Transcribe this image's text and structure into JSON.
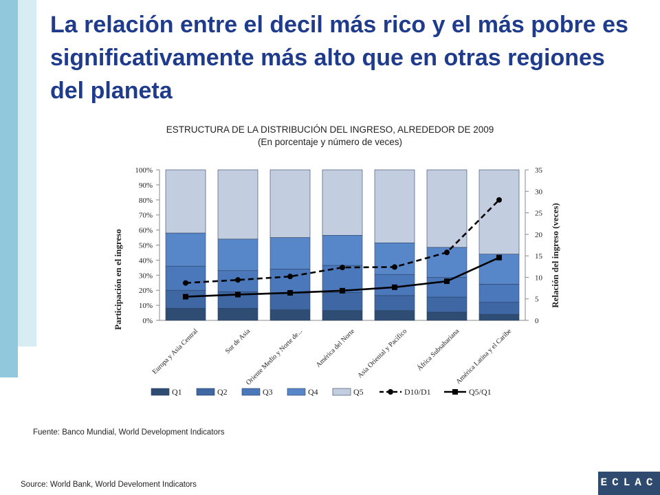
{
  "page": {
    "title": "La relación entre el decil más rico y el más pobre es significativamente más alto que en otras regiones del planeta",
    "source_es": "Fuente: Banco Mundial, World Development Indicators",
    "source_en": "Source: World Bank, World Develoment Indicators",
    "logo_text": "ECLAC"
  },
  "colors": {
    "accent_bar": "#92c8dc",
    "accent_bar_light": "#d7ecf3",
    "title": "#1f3b8c",
    "q1": "#2f4d72",
    "q2": "#3e67a3",
    "q3": "#4b78ba",
    "q4": "#5787c8",
    "q5": "#c3cde0",
    "logo_bg": "#2e4a6e"
  },
  "chart_data": {
    "type": "bar",
    "stacked": true,
    "title": "ESTRUCTURA DE LA DISTRIBUCIÓN DEL INGRESO, ALREDEDOR DE 2009",
    "subtitle": "(En porcentaje y número de veces)",
    "ylabel": "Participación en el ingreso",
    "y2label": "Relación del ingreso (veces)",
    "ylim": [
      0,
      100
    ],
    "y2lim": [
      0,
      35
    ],
    "yticks": [
      "0%",
      "10%",
      "20%",
      "30%",
      "40%",
      "50%",
      "60%",
      "70%",
      "80%",
      "90%",
      "100%"
    ],
    "y2ticks": [
      "0",
      "5",
      "10",
      "15",
      "20",
      "25",
      "30",
      "35"
    ],
    "categories": [
      "Europa y Asia Central",
      "Sur de Asia",
      "Oriente Medio y Norte de...",
      "América del Norte",
      "Asia Oriental y Pacífico",
      "África Subsahariana",
      "América Latina y el Caribe"
    ],
    "series": [
      {
        "name": "Q1",
        "kind": "bar",
        "values": [
          8,
          8,
          7,
          6.5,
          6.5,
          5.5,
          4
        ]
      },
      {
        "name": "Q2",
        "kind": "bar",
        "values": [
          12,
          11,
          11,
          12,
          10,
          10,
          8
        ]
      },
      {
        "name": "Q3",
        "kind": "bar",
        "values": [
          16,
          14,
          16,
          18,
          14,
          13,
          12
        ]
      },
      {
        "name": "Q4",
        "kind": "bar",
        "values": [
          22,
          21,
          21,
          20,
          21,
          20,
          20
        ]
      },
      {
        "name": "Q5",
        "kind": "bar",
        "values": [
          42,
          46,
          45,
          43.5,
          48.5,
          51.5,
          56
        ]
      },
      {
        "name": "D10/D1",
        "kind": "line",
        "axis": "right",
        "style": "dashed",
        "marker": "circle",
        "values": [
          8.7,
          9.4,
          10.2,
          12.3,
          12.4,
          15.8,
          28
        ]
      },
      {
        "name": "Q5/Q1",
        "kind": "line",
        "axis": "right",
        "style": "solid",
        "marker": "square",
        "values": [
          5.5,
          6.0,
          6.4,
          6.9,
          7.7,
          9.1,
          14.6
        ]
      }
    ],
    "legend": [
      "Q1",
      "Q2",
      "Q3",
      "Q4",
      "Q5",
      "D10/D1",
      "Q5/Q1"
    ],
    "legend_position": "bottom"
  }
}
